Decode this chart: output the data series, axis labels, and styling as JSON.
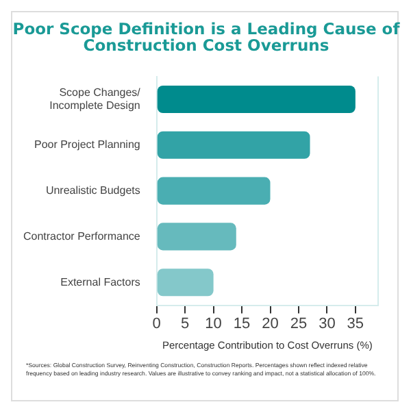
{
  "chart_data": {
    "type": "bar",
    "orientation": "horizontal",
    "title": "Poor Scope Definition is a Leading Cause of Construction Cost Overruns",
    "categories": [
      "Scope Changes/ Incomplete Design",
      "Poor Project Planning",
      "Unrealistic Budgets",
      "Contractor Performance",
      "External Factors"
    ],
    "values": [
      35,
      27,
      20,
      14,
      10
    ],
    "colors": [
      "#008b8d",
      "#32a3a6",
      "#4aaeb2",
      "#66babd",
      "#84c8ca"
    ],
    "xlabel": "Percentage Contribution to Cost Overruns (%)",
    "xlim": [
      0,
      39
    ],
    "xticks": [
      0,
      5,
      10,
      15,
      20,
      25,
      30,
      35
    ],
    "grid": false,
    "legend": false,
    "annotations": [
      "*Sources: Global Construction Survey, Reinventing Construction, Construction Reports. Percentages shown reflect indexed relative frequency based on leading industry research. Values are illustrative to convey ranking and impact, not a statistical allocation of 100%."
    ]
  }
}
